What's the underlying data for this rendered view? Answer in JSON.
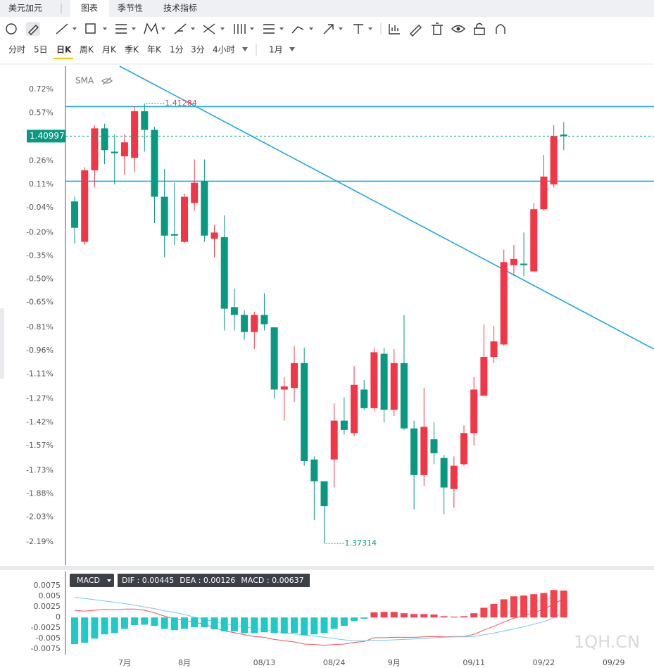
{
  "tabs": [
    "美元加元",
    "图表",
    "季节性",
    "技术指标"
  ],
  "timeframes": [
    "分时",
    "5日",
    "日K",
    "周K",
    "月K",
    "季K",
    "年K",
    "1分",
    "3分",
    "4小时"
  ],
  "period": "1月",
  "watermark": "1QH.CN",
  "chart_data": [
    {
      "type": "candlestick",
      "indicator": "SMA",
      "up_color": "#f23645",
      "down_color": "#089981",
      "open": [
        0,
        -0.26,
        0.2,
        0.47,
        0.32,
        0.29,
        0.28,
        0.58,
        0.46,
        0.03,
        -0.21,
        -0.26,
        -0.01,
        0.13,
        -0.24,
        -0.23,
        -0.68,
        -0.73,
        -0.84,
        -0.73,
        -0.81,
        -1.21,
        -1.2,
        -1.04,
        -1.66,
        -1.8,
        -1.66,
        -1.41,
        -1.49,
        -1.21,
        -1.33,
        -0.98,
        -1.34,
        -1.04,
        -1.46,
        -1.76,
        -1.53,
        -1.65,
        -1.85,
        -1.69,
        -1.49,
        -1.25,
        -1.0,
        -0.92,
        -0.41,
        -0.4,
        -0.45,
        -0.05,
        0.11,
        0.43
      ],
      "high": [
        0.03,
        0.22,
        0.49,
        0.5,
        0.43,
        0.43,
        0.61,
        0.63,
        0.48,
        0.21,
        0.12,
        0.05,
        0.27,
        0.27,
        -0.15,
        -0.09,
        -0.56,
        -0.7,
        -0.71,
        -0.59,
        -0.81,
        -1.13,
        -0.93,
        -0.94,
        -1.64,
        -1.8,
        -1.3,
        -1.26,
        -1.06,
        -1.15,
        -0.94,
        -0.94,
        -0.95,
        -0.73,
        -1.41,
        -1.2,
        -1.42,
        -1.63,
        -1.64,
        -1.44,
        -1.13,
        -0.79,
        -0.8,
        -0.31,
        -0.28,
        -0.2,
        -0.01,
        0.3,
        0.49,
        0.51
      ],
      "low": [
        -0.27,
        -0.28,
        0.09,
        0.24,
        0.11,
        0.17,
        0.19,
        0.32,
        -0.14,
        -0.36,
        -0.28,
        -0.27,
        -0.06,
        -0.26,
        -0.36,
        -0.83,
        -0.83,
        -0.89,
        -0.95,
        -0.83,
        -1.27,
        -1.41,
        -1.29,
        -1.7,
        -2.05,
        -2.2,
        -1.84,
        -1.5,
        -1.51,
        -1.34,
        -1.35,
        -1.42,
        -1.38,
        -1.47,
        -1.98,
        -1.83,
        -1.69,
        -2.01,
        -1.97,
        -1.7,
        -1.57,
        -1.25,
        -1.04,
        -0.93,
        -0.48,
        -0.48,
        -0.45,
        -0.06,
        0.09,
        0.33
      ],
      "close": [
        -0.17,
        0.2,
        0.47,
        0.33,
        0.31,
        0.38,
        0.58,
        0.46,
        0.03,
        -0.22,
        -0.22,
        0.03,
        0.12,
        -0.22,
        -0.2,
        -0.69,
        -0.73,
        -0.84,
        -0.73,
        -0.79,
        -1.21,
        -1.19,
        -1.04,
        -1.67,
        -1.8,
        -1.96,
        -1.41,
        -1.47,
        -1.18,
        -1.33,
        -0.97,
        -1.34,
        -1.04,
        -1.46,
        -1.76,
        -1.45,
        -1.62,
        -1.84,
        -1.7,
        -1.49,
        -1.21,
        -1.0,
        -0.9,
        -0.39,
        -0.37,
        -0.41,
        -0.05,
        0.16,
        0.42,
        0.42
      ],
      "xlim": [
        -0.92,
        58.04
      ],
      "ylim": [
        -2.34,
        0.87
      ],
      "yticks": [
        {
          "value": 0.72,
          "label": "0.72%"
        },
        {
          "value": 0.57,
          "label": "0.57%"
        },
        {
          "value": 0.26,
          "label": "0.26%"
        },
        {
          "value": 0.11,
          "label": "0.11%"
        },
        {
          "value": -0.04,
          "label": "-0.04%"
        },
        {
          "value": -0.2,
          "label": "-0.20%"
        },
        {
          "value": -0.35,
          "label": "-0.35%"
        },
        {
          "value": -0.5,
          "label": "-0.50%"
        },
        {
          "value": -0.65,
          "label": "-0.65%"
        },
        {
          "value": -0.81,
          "label": "-0.81%"
        },
        {
          "value": -0.96,
          "label": "-0.96%"
        },
        {
          "value": -1.11,
          "label": "-1.11%"
        },
        {
          "value": -1.27,
          "label": "-1.27%"
        },
        {
          "value": -1.42,
          "label": "-1.42%"
        },
        {
          "value": -1.57,
          "label": "-1.57%"
        },
        {
          "value": -1.73,
          "label": "-1.73%"
        },
        {
          "value": -1.88,
          "label": "-1.88%"
        },
        {
          "value": -2.03,
          "label": "-2.03%"
        },
        {
          "value": -2.19,
          "label": "-2.19%"
        }
      ],
      "grid": false,
      "last_price": 1.40997,
      "high_price": 1.41284,
      "low_price": 1.37314,
      "drawing_color": "#1fa8e6",
      "hlines": [
        0.61,
        0.13
      ],
      "trend_line": {
        "x": [
          4.51,
          58.04
        ],
        "y": [
          0.87,
          -0.95
        ]
      }
    },
    {
      "type": "macd",
      "indicator": "MACD",
      "series": [
        {
          "name": "DIF",
          "color": "#f0505c",
          "values": [
            0.0017,
            0.0015,
            0.0017,
            0.0019,
            0.0018,
            0.002,
            0.002,
            0.0017,
            0.0011,
            0.0003,
            -0.0003,
            -0.0007,
            -0.0011,
            -0.0016,
            -0.0024,
            -0.0032,
            -0.0036,
            -0.0041,
            -0.0045,
            -0.0047,
            -0.0052,
            -0.0055,
            -0.0058,
            -0.0063,
            -0.0064,
            -0.0066,
            -0.0064,
            -0.0063,
            -0.0059,
            -0.0057,
            -0.0048,
            -0.0048,
            -0.0047,
            -0.0047,
            -0.0047,
            -0.0046,
            -0.0045,
            -0.0046,
            -0.0045,
            -0.0045,
            -0.004,
            -0.003,
            -0.0021,
            -0.0011,
            -0.0002,
            0.0004,
            0.0012,
            0.0019,
            0.0032,
            0.00445
          ]
        },
        {
          "name": "DEA",
          "color": "#7cc8ea",
          "values": [
            0.0048,
            0.0045,
            0.0042,
            0.0039,
            0.0036,
            0.0033,
            0.0029,
            0.0025,
            0.0021,
            0.0016,
            0.0012,
            0.0007,
            0.0001,
            -0.0004,
            -0.001,
            -0.0015,
            -0.0019,
            -0.0022,
            -0.0026,
            -0.0029,
            -0.0033,
            -0.0036,
            -0.0039,
            -0.0042,
            -0.0044,
            -0.0047,
            -0.005,
            -0.0053,
            -0.0055,
            -0.0055,
            -0.0054,
            -0.0054,
            -0.0053,
            -0.0052,
            -0.0051,
            -0.005,
            -0.0048,
            -0.0047,
            -0.0046,
            -0.0046,
            -0.0045,
            -0.0041,
            -0.0037,
            -0.0032,
            -0.0027,
            -0.0022,
            -0.0016,
            -0.001,
            -0.0001,
            0.00126
          ]
        },
        {
          "name": "MACD",
          "pos_color": "#f5424f",
          "neg_color": "#1ec9c9",
          "values": [
            -0.0063,
            -0.006,
            -0.005,
            -0.004,
            -0.0037,
            -0.0027,
            -0.0018,
            -0.0017,
            -0.002,
            -0.0027,
            -0.003,
            -0.0027,
            -0.0023,
            -0.0023,
            -0.0028,
            -0.0033,
            -0.0033,
            -0.0037,
            -0.0037,
            -0.0035,
            -0.0037,
            -0.0038,
            -0.0037,
            -0.0042,
            -0.004,
            -0.0037,
            -0.0027,
            -0.002,
            -0.0008,
            -0.0003,
            0.0012,
            0.0013,
            0.0013,
            0.001,
            0.0008,
            0.0008,
            0.0007,
            0.0003,
            0.0002,
            0.0003,
            0.001,
            0.0023,
            0.0032,
            0.0043,
            0.005,
            0.0052,
            0.0055,
            0.0058,
            0.0065,
            0.00637
          ]
        }
      ],
      "readout": [
        0.00445,
        0.00126,
        0.00637
      ],
      "xlim": [
        -0.92,
        58.04
      ],
      "ylim": [
        -0.0088,
        0.0092
      ],
      "yticks": [
        0.0075,
        0.005,
        0.0025,
        0,
        -0.0025,
        -0.005,
        -0.0075
      ],
      "xticks": [
        {
          "value": 5,
          "label": "7月"
        },
        {
          "value": 11,
          "label": "8月"
        },
        {
          "value": 19,
          "label": "08/13"
        },
        {
          "value": 26,
          "label": "08/24"
        },
        {
          "value": 32,
          "label": "9月"
        },
        {
          "value": 40,
          "label": "09/11"
        },
        {
          "value": 47,
          "label": "09/22"
        },
        {
          "value": 54,
          "label": "09/29"
        }
      ]
    }
  ]
}
